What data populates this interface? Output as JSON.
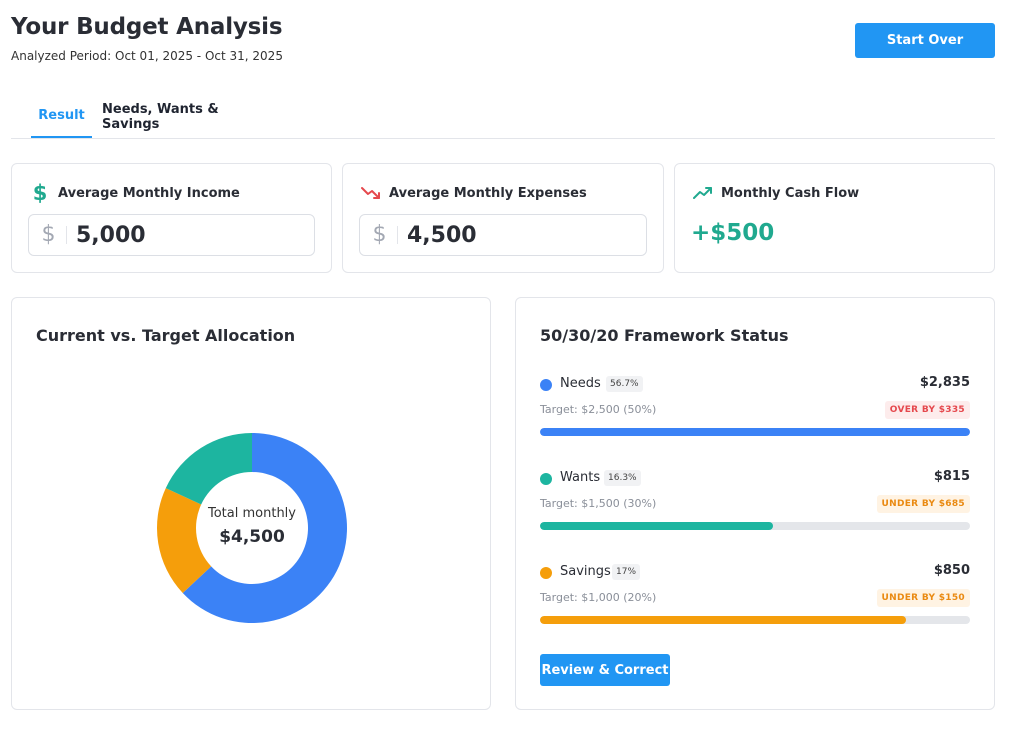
{
  "header": {
    "title": "Your Budget Analysis",
    "period": "Analyzed Period: Oct 01, 2025 - Oct 31, 2025",
    "start_over_label": "Start Over"
  },
  "tabs": [
    {
      "label": "Result",
      "active": true
    },
    {
      "label": "Needs, Wants & Savings",
      "active": false
    }
  ],
  "stats": {
    "income": {
      "label": "Average Monthly Income",
      "currency": "$",
      "value": "5,000",
      "icon": "dollar-icon",
      "color": "#20a98f"
    },
    "expenses": {
      "label": "Average Monthly Expenses",
      "currency": "$",
      "value": "4,500",
      "icon": "trending-down-icon",
      "color": "#e5484d"
    },
    "cashflow": {
      "label": "Monthly Cash Flow",
      "value": "+$500",
      "icon": "trending-up-icon",
      "color": "#20a98f"
    }
  },
  "allocation": {
    "title": "Current vs. Target Allocation",
    "center_label": "Total monthly",
    "center_value": "$4,500",
    "segments": [
      {
        "name": "Needs",
        "fraction": 0.63,
        "color": "#3b82f6"
      },
      {
        "name": "Savings",
        "fraction": 0.189,
        "color": "#f59e0b"
      },
      {
        "name": "Wants",
        "fraction": 0.181,
        "color": "#1db5a0"
      }
    ]
  },
  "framework": {
    "title": "50/30/20 Framework Status",
    "rows": [
      {
        "name": "Needs",
        "pct": "56.7%",
        "amount": "$2,835",
        "target": "Target: $2,500 (50%)",
        "badge": "OVER BY $335",
        "badge_type": "over",
        "progress": 1.0,
        "color": "#3b82f6"
      },
      {
        "name": "Wants",
        "pct": "16.3%",
        "amount": "$815",
        "target": "Target: $1,500 (30%)",
        "badge": "UNDER BY $685",
        "badge_type": "under",
        "progress": 0.543,
        "color": "#1db5a0"
      },
      {
        "name": "Savings",
        "pct": "17%",
        "amount": "$850",
        "target": "Target: $1,000 (20%)",
        "badge": "UNDER BY $150",
        "badge_type": "under",
        "progress": 0.85,
        "color": "#f59e0b"
      }
    ],
    "review_label": "Review & Correct"
  }
}
